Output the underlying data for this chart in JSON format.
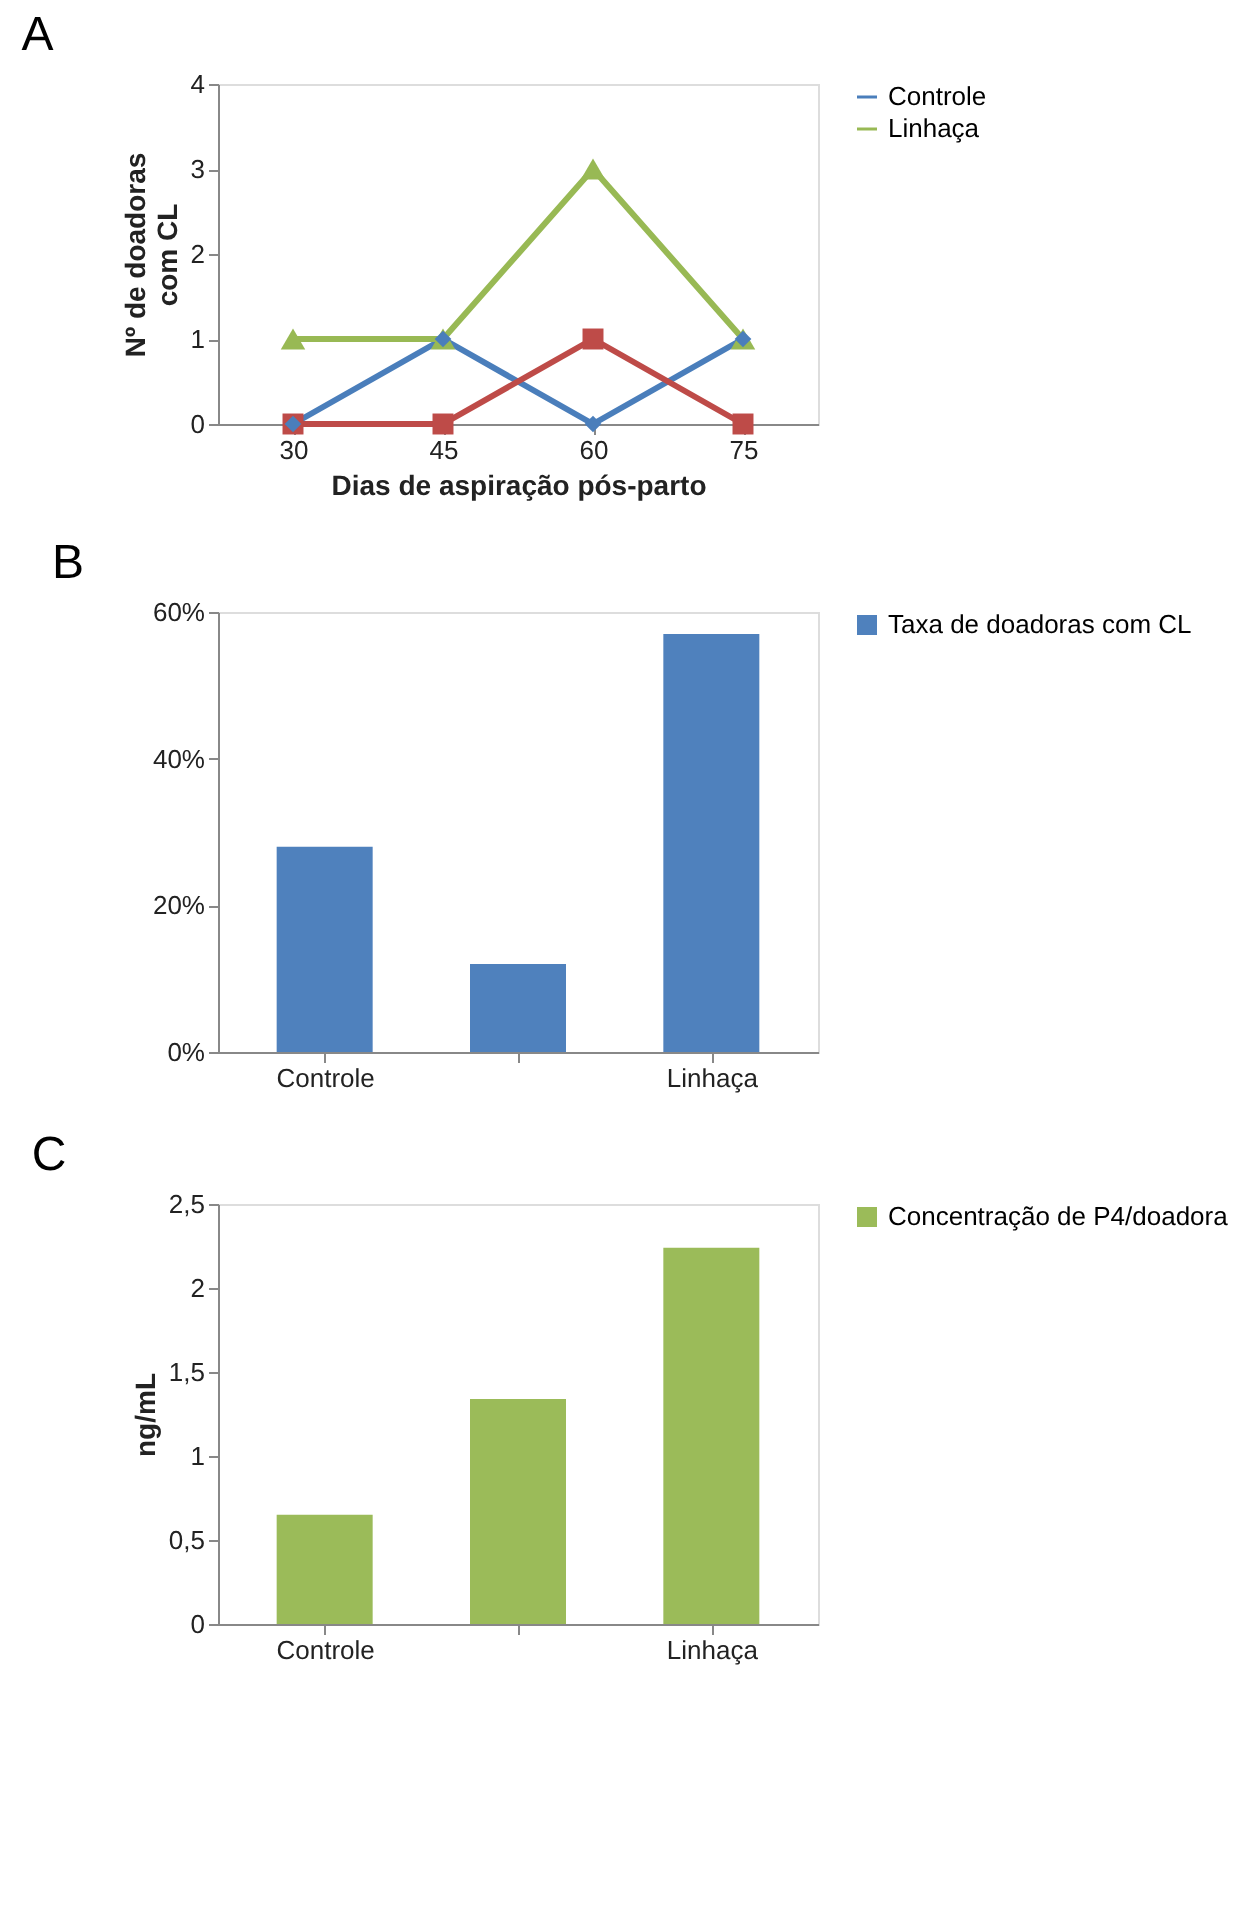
{
  "chart_data": [
    {
      "type": "line",
      "title": "A",
      "xlabel": "Dias de aspiração pós-parto",
      "ylabel": "Nº de doadoras com CL",
      "categories": [
        "30",
        "45",
        "60",
        "75"
      ],
      "ylim": [
        0,
        4
      ],
      "yticks": [
        0,
        1,
        2,
        3,
        4
      ],
      "grid": false,
      "legend": "right",
      "line_style": "solid",
      "series": [
        {
          "name": "Controle",
          "color": "#4a7ebb",
          "marker": "diamond",
          "values": [
            0,
            1,
            0,
            1
          ]
        },
        {
          "color": "#be4b48",
          "marker": "square",
          "values": [
            0,
            0,
            1,
            0
          ]
        },
        {
          "name": "Linhaça",
          "color": "#98b954",
          "marker": "triangle",
          "values": [
            1,
            1,
            3,
            1
          ]
        }
      ]
    },
    {
      "type": "bar",
      "title": "B",
      "categories": [
        "Controle",
        null,
        "Linhaça"
      ],
      "ylim": [
        0,
        60
      ],
      "yticks": [
        {
          "value": 0,
          "label": "0%"
        },
        {
          "value": 20,
          "label": "20%"
        },
        {
          "value": 40,
          "label": "40%"
        },
        {
          "value": 60,
          "label": "60%"
        }
      ],
      "grid": false,
      "legend": "right",
      "series": [
        {
          "name": "Taxa de doadoras com CL",
          "color": "#4f81bd",
          "values": [
            28,
            12,
            57
          ]
        }
      ]
    },
    {
      "type": "bar",
      "title": "C",
      "ylabel": "ng/mL",
      "categories": [
        "Controle",
        null,
        "Linhaça"
      ],
      "ylim": [
        0,
        2.5
      ],
      "yticks": [
        0,
        {
          "value": 0.5,
          "label": "0,5"
        },
        1,
        {
          "value": 1.5,
          "label": "1,5"
        },
        2,
        {
          "value": 2.5,
          "label": "2,5"
        }
      ],
      "grid": false,
      "legend": "right",
      "series": [
        {
          "name": "Concentração de P4/doadora",
          "color": "#9bbb59",
          "values": [
            0.65,
            1.34,
            2.24
          ]
        }
      ]
    }
  ]
}
